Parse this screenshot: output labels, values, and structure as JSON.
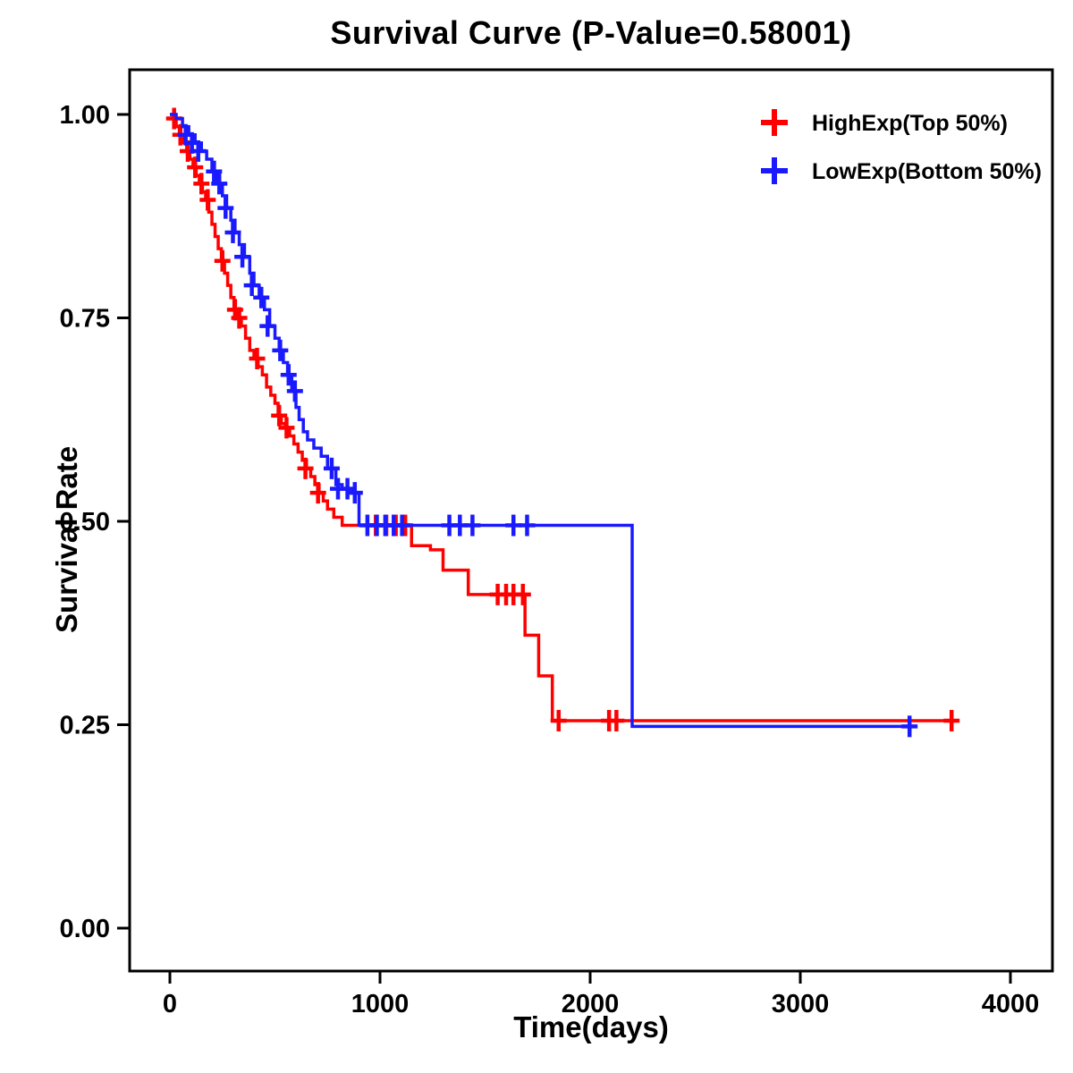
{
  "chart_data": {
    "type": "line",
    "subtype": "kaplan-meier-step-survival",
    "title": "Survival Curve (P-Value=0.58001)",
    "xlabel": "Time(days)",
    "ylabel": "Survival Rate",
    "xlim": [
      0,
      4000
    ],
    "ylim": [
      0.0,
      1.0
    ],
    "grid": false,
    "legend_position": "top-right",
    "x_ticks": [
      0,
      1000,
      2000,
      3000,
      4000
    ],
    "x_tick_labels": [
      "0",
      "1000",
      "2000",
      "3000",
      "4000"
    ],
    "y_ticks": [
      0.0,
      0.25,
      0.5,
      0.75,
      1.0
    ],
    "y_tick_labels": [
      "0.00",
      "0.25",
      "0.50",
      "0.75",
      "1.00"
    ],
    "series": [
      {
        "id": "highexp",
        "name": "HighExp(Top 50%)",
        "color": "#FF0000",
        "steps": [
          [
            0,
            1.0
          ],
          [
            15,
            0.995
          ],
          [
            30,
            0.985
          ],
          [
            45,
            0.975
          ],
          [
            60,
            0.965
          ],
          [
            80,
            0.955
          ],
          [
            95,
            0.945
          ],
          [
            110,
            0.935
          ],
          [
            125,
            0.925
          ],
          [
            140,
            0.915
          ],
          [
            155,
            0.905
          ],
          [
            170,
            0.895
          ],
          [
            185,
            0.88
          ],
          [
            200,
            0.865
          ],
          [
            215,
            0.85
          ],
          [
            230,
            0.835
          ],
          [
            245,
            0.82
          ],
          [
            260,
            0.805
          ],
          [
            275,
            0.79
          ],
          [
            290,
            0.775
          ],
          [
            305,
            0.76
          ],
          [
            320,
            0.75
          ],
          [
            340,
            0.74
          ],
          [
            360,
            0.725
          ],
          [
            380,
            0.71
          ],
          [
            400,
            0.7
          ],
          [
            420,
            0.69
          ],
          [
            440,
            0.68
          ],
          [
            460,
            0.665
          ],
          [
            480,
            0.655
          ],
          [
            500,
            0.645
          ],
          [
            515,
            0.63
          ],
          [
            530,
            0.62
          ],
          [
            550,
            0.615
          ],
          [
            570,
            0.605
          ],
          [
            590,
            0.595
          ],
          [
            610,
            0.585
          ],
          [
            630,
            0.575
          ],
          [
            650,
            0.565
          ],
          [
            670,
            0.555
          ],
          [
            690,
            0.545
          ],
          [
            710,
            0.535
          ],
          [
            730,
            0.525
          ],
          [
            750,
            0.515
          ],
          [
            780,
            0.505
          ],
          [
            820,
            0.495
          ],
          [
            1150,
            0.47
          ],
          [
            1240,
            0.465
          ],
          [
            1300,
            0.44
          ],
          [
            1420,
            0.41
          ],
          [
            1690,
            0.36
          ],
          [
            1755,
            0.31
          ],
          [
            1820,
            0.255
          ],
          [
            3720,
            0.255
          ]
        ],
        "censors": [
          [
            20,
            0.995
          ],
          [
            50,
            0.975
          ],
          [
            85,
            0.955
          ],
          [
            120,
            0.935
          ],
          [
            150,
            0.915
          ],
          [
            180,
            0.895
          ],
          [
            250,
            0.82
          ],
          [
            310,
            0.76
          ],
          [
            330,
            0.75
          ],
          [
            415,
            0.7
          ],
          [
            520,
            0.63
          ],
          [
            555,
            0.615
          ],
          [
            645,
            0.565
          ],
          [
            705,
            0.535
          ],
          [
            980,
            0.495
          ],
          [
            1030,
            0.495
          ],
          [
            1075,
            0.495
          ],
          [
            1120,
            0.495
          ],
          [
            1560,
            0.41
          ],
          [
            1600,
            0.41
          ],
          [
            1635,
            0.41
          ],
          [
            1680,
            0.41
          ],
          [
            1850,
            0.255
          ],
          [
            2090,
            0.255
          ],
          [
            2125,
            0.255
          ],
          [
            3720,
            0.255
          ]
        ]
      },
      {
        "id": "lowexp",
        "name": "LowExp(Bottom 50%)",
        "color": "#1A1AFF",
        "steps": [
          [
            0,
            1.0
          ],
          [
            30,
            0.995
          ],
          [
            60,
            0.985
          ],
          [
            90,
            0.975
          ],
          [
            120,
            0.965
          ],
          [
            150,
            0.955
          ],
          [
            175,
            0.945
          ],
          [
            200,
            0.93
          ],
          [
            225,
            0.915
          ],
          [
            250,
            0.9
          ],
          [
            270,
            0.885
          ],
          [
            290,
            0.87
          ],
          [
            310,
            0.855
          ],
          [
            330,
            0.84
          ],
          [
            355,
            0.825
          ],
          [
            380,
            0.805
          ],
          [
            400,
            0.79
          ],
          [
            425,
            0.775
          ],
          [
            450,
            0.76
          ],
          [
            475,
            0.74
          ],
          [
            500,
            0.725
          ],
          [
            520,
            0.71
          ],
          [
            540,
            0.695
          ],
          [
            560,
            0.68
          ],
          [
            580,
            0.66
          ],
          [
            600,
            0.64
          ],
          [
            615,
            0.625
          ],
          [
            635,
            0.61
          ],
          [
            655,
            0.6
          ],
          [
            685,
            0.59
          ],
          [
            720,
            0.58
          ],
          [
            750,
            0.565
          ],
          [
            790,
            0.545
          ],
          [
            820,
            0.54
          ],
          [
            870,
            0.535
          ],
          [
            900,
            0.495
          ],
          [
            2200,
            0.248
          ],
          [
            3530,
            0.248
          ]
        ],
        "censors": [
          [
            75,
            0.975
          ],
          [
            105,
            0.965
          ],
          [
            135,
            0.955
          ],
          [
            210,
            0.93
          ],
          [
            235,
            0.915
          ],
          [
            265,
            0.885
          ],
          [
            300,
            0.855
          ],
          [
            345,
            0.825
          ],
          [
            390,
            0.79
          ],
          [
            435,
            0.775
          ],
          [
            465,
            0.74
          ],
          [
            525,
            0.71
          ],
          [
            565,
            0.68
          ],
          [
            595,
            0.66
          ],
          [
            770,
            0.565
          ],
          [
            800,
            0.54
          ],
          [
            845,
            0.54
          ],
          [
            880,
            0.535
          ],
          [
            940,
            0.495
          ],
          [
            985,
            0.495
          ],
          [
            1025,
            0.495
          ],
          [
            1065,
            0.495
          ],
          [
            1105,
            0.495
          ],
          [
            1330,
            0.495
          ],
          [
            1380,
            0.495
          ],
          [
            1440,
            0.495
          ],
          [
            1635,
            0.495
          ],
          [
            1700,
            0.495
          ],
          [
            3520,
            0.248
          ]
        ]
      }
    ]
  }
}
